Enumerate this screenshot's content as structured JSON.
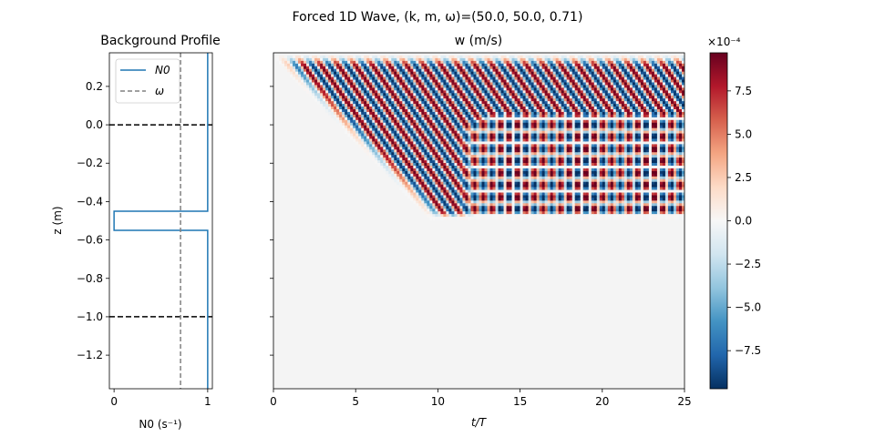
{
  "figure": {
    "suptitle": "Forced 1D Wave, (k, m, ω)=(50.0, 50.0, 0.71)"
  },
  "chart_data": [
    {
      "type": "line",
      "title": "Background Profile",
      "xlabel": "N0 (s⁻¹)",
      "ylabel": "z (m)",
      "xlim": [
        -0.05,
        1.05
      ],
      "ylim": [
        -1.375,
        0.375
      ],
      "xticks": [
        0,
        1
      ],
      "yticks": [
        0.2,
        0.0,
        -0.2,
        -0.4,
        -0.6,
        -0.8,
        -1.0,
        -1.2
      ],
      "grid": false,
      "legend": {
        "placement": "top-left",
        "entries": [
          "N0",
          "ω"
        ]
      },
      "series": [
        {
          "name": "N0",
          "color": "#1f77b4",
          "style": "solid",
          "x": [
            1,
            1,
            0,
            0,
            1,
            1
          ],
          "y": [
            0.375,
            -0.45,
            -0.45,
            -0.55,
            -0.55,
            -1.375
          ]
        },
        {
          "name": "ω",
          "color": "#808080",
          "style": "dashed",
          "x": [
            0.71,
            0.71
          ],
          "y": [
            0.375,
            -1.375
          ]
        }
      ],
      "hlines": [
        {
          "y": 0.0,
          "color": "#000000",
          "style": "dashed"
        },
        {
          "y": -1.0,
          "color": "#000000",
          "style": "dashed"
        }
      ]
    },
    {
      "type": "heatmap",
      "title": "w (m/s)",
      "xlabel": "t/T",
      "ylabel": "",
      "xlim": [
        0,
        25
      ],
      "ylim": [
        -1.375,
        0.375
      ],
      "xticks": [
        0,
        5,
        10,
        15,
        20,
        25
      ],
      "grid": false,
      "colormap": "RdBu_r",
      "colorbar": {
        "label": "",
        "exponent_label": "×10⁻⁴",
        "vmin": -9.7,
        "vmax": 9.7,
        "ticks": [
          7.5,
          5.0,
          2.5,
          0.0,
          -2.5,
          -5.0,
          -7.5
        ]
      },
      "field": {
        "description_params": {
          "k": 50.0,
          "m": 50.0,
          "omega": 0.71,
          "source_top_z": 0.3,
          "layer_top_z": -0.45,
          "layer_bottom_z": -0.55,
          "amplitude": 9.7
        }
      }
    }
  ]
}
